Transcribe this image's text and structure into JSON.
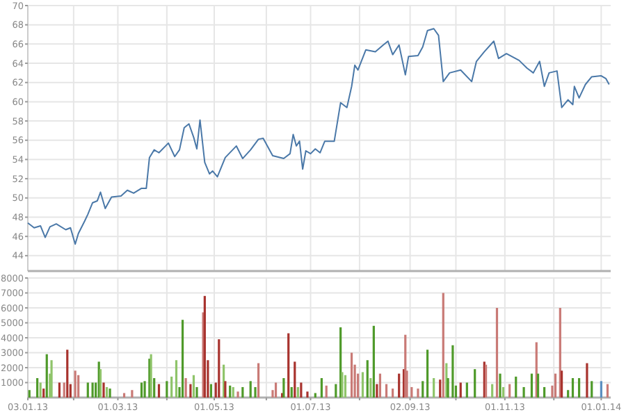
{
  "chart_data": [
    {
      "type": "line",
      "tick_labels": "y",
      "grid": true,
      "xlim": [
        "2013-01-03",
        "2014-01-07"
      ],
      "ylim": [
        42.4,
        70
      ],
      "yticks": [
        44,
        46,
        48,
        50,
        52,
        54,
        56,
        58,
        60,
        62,
        64,
        66,
        68,
        70
      ],
      "xticks": [
        {
          "value": "2013-01-03",
          "label": null
        },
        {
          "value": "2013-02-01",
          "label": null
        },
        {
          "value": "2013-03-01",
          "label": null
        },
        {
          "value": "2013-04-01",
          "label": null
        },
        {
          "value": "2013-05-01",
          "label": null
        },
        {
          "value": "2013-06-03",
          "label": null
        },
        {
          "value": "2013-07-01",
          "label": null
        },
        {
          "value": "2013-08-01",
          "label": null
        },
        {
          "value": "2013-09-02",
          "label": null
        },
        {
          "value": "2013-10-01",
          "label": null
        },
        {
          "value": "2013-11-01",
          "label": null
        },
        {
          "value": "2013-12-02",
          "label": null
        },
        {
          "value": "2014-01-01",
          "label": null
        }
      ],
      "series": [
        {
          "color": "#4a78a8",
          "x": [
            "2013-01-03",
            "2013-01-07",
            "2013-01-11",
            "2013-01-14",
            "2013-01-17",
            "2013-01-21",
            "2013-01-27",
            "2013-01-30",
            "2013-02-02",
            "2013-02-04",
            "2013-02-08",
            "2013-02-10",
            "2013-02-13",
            "2013-02-16",
            "2013-02-18",
            "2013-02-21",
            "2013-02-25",
            "2013-03-03",
            "2013-03-07",
            "2013-03-11",
            "2013-03-16",
            "2013-03-19",
            "2013-03-21",
            "2013-03-24",
            "2013-03-27",
            "2013-04-02",
            "2013-04-06",
            "2013-04-09",
            "2013-04-12",
            "2013-04-15",
            "2013-04-18",
            "2013-04-20",
            "2013-04-22",
            "2013-04-25",
            "2013-04-28",
            "2013-04-30",
            "2013-05-03",
            "2013-05-08",
            "2013-05-15",
            "2013-05-19",
            "2013-05-24",
            "2013-05-29",
            "2013-06-01",
            "2013-06-07",
            "2013-06-14",
            "2013-06-18",
            "2013-06-20",
            "2013-06-22",
            "2013-06-24",
            "2013-06-26",
            "2013-06-28",
            "2013-07-01",
            "2013-07-04",
            "2013-07-07",
            "2013-07-10",
            "2013-07-16",
            "2013-07-19",
            "2013-07-20",
            "2013-07-24",
            "2013-07-27",
            "2013-07-29",
            "2013-07-31",
            "2013-08-05",
            "2013-08-11",
            "2013-08-16",
            "2013-08-19",
            "2013-08-22",
            "2013-08-26",
            "2013-08-30",
            "2013-09-01",
            "2013-09-07",
            "2013-09-10",
            "2013-09-13",
            "2013-09-17",
            "2013-09-20",
            "2013-09-23",
            "2013-09-27",
            "2013-10-04",
            "2013-10-11",
            "2013-10-14",
            "2013-10-19",
            "2013-10-25",
            "2013-10-28",
            "2013-11-02",
            "2013-11-10",
            "2013-11-15",
            "2013-11-19",
            "2013-11-23",
            "2013-11-26",
            "2013-11-29",
            "2013-12-04",
            "2013-12-07",
            "2013-12-11",
            "2013-12-14",
            "2013-12-15",
            "2013-12-18",
            "2013-12-22",
            "2013-12-26",
            "2014-01-01",
            "2014-01-04",
            "2014-01-06"
          ],
          "values": [
            47.4,
            46.9,
            47.1,
            45.9,
            47.0,
            47.3,
            46.7,
            46.9,
            45.2,
            46.3,
            47.6,
            48.3,
            49.5,
            49.7,
            50.6,
            48.9,
            50.1,
            50.2,
            50.8,
            50.5,
            51.0,
            51.0,
            54.2,
            55.0,
            54.7,
            55.7,
            54.3,
            55.0,
            57.3,
            57.7,
            56.3,
            55.1,
            58.1,
            53.7,
            52.5,
            52.8,
            52.2,
            54.2,
            55.4,
            54.1,
            55.0,
            56.1,
            56.2,
            54.4,
            54.1,
            54.6,
            56.6,
            55.4,
            55.9,
            53.0,
            54.9,
            54.6,
            55.1,
            54.7,
            55.9,
            55.9,
            58.9,
            59.9,
            59.4,
            61.6,
            63.8,
            63.3,
            65.4,
            65.2,
            65.9,
            66.3,
            64.9,
            65.9,
            62.8,
            64.7,
            64.8,
            65.7,
            67.4,
            67.6,
            66.9,
            62.1,
            63.0,
            63.3,
            62.1,
            64.2,
            65.2,
            66.3,
            64.5,
            65.0,
            64.3,
            63.5,
            63.0,
            64.2,
            61.6,
            63.0,
            63.2,
            59.4,
            60.2,
            59.7,
            61.6,
            60.4,
            61.8,
            62.6,
            62.7,
            62.4,
            61.8
          ]
        }
      ]
    },
    {
      "type": "bar",
      "grid": true,
      "xlim": [
        "2013-01-03",
        "2014-01-07"
      ],
      "ylim": [
        0,
        8000
      ],
      "yticks": [
        1000,
        2000,
        3000,
        4000,
        5000,
        6000,
        7000,
        8000
      ],
      "xticks": [
        {
          "value": "2013-01-03",
          "label": "03.01.13"
        },
        {
          "value": "2013-02-01",
          "label": null
        },
        {
          "value": "2013-03-01",
          "label": "01.03.13"
        },
        {
          "value": "2013-04-01",
          "label": null
        },
        {
          "value": "2013-05-01",
          "label": "01.05.13"
        },
        {
          "value": "2013-06-03",
          "label": null
        },
        {
          "value": "2013-07-01",
          "label": "01.07.13"
        },
        {
          "value": "2013-08-01",
          "label": null
        },
        {
          "value": "2013-09-02",
          "label": "02.09.13"
        },
        {
          "value": "2013-10-01",
          "label": null
        },
        {
          "value": "2013-11-01",
          "label": "01.11.13"
        },
        {
          "value": "2013-12-02",
          "label": null
        },
        {
          "value": "2014-01-01",
          "label": "01.01.14"
        }
      ],
      "x": [
        "2013-01-04",
        "2013-01-09",
        "2013-01-11",
        "2013-01-13",
        "2013-01-15",
        "2013-01-17",
        "2013-01-18",
        "2013-01-23",
        "2013-01-26",
        "2013-01-28",
        "2013-01-30",
        "2013-02-02",
        "2013-02-04",
        "2013-02-10",
        "2013-02-13",
        "2013-02-15",
        "2013-02-17",
        "2013-02-18",
        "2013-02-20",
        "2013-02-22",
        "2013-02-24",
        "2013-03-05",
        "2013-03-10",
        "2013-03-16",
        "2013-03-18",
        "2013-03-21",
        "2013-03-22",
        "2013-03-24",
        "2013-03-27",
        "2013-04-01",
        "2013-04-04",
        "2013-04-07",
        "2013-04-09",
        "2013-04-11",
        "2013-04-13",
        "2013-04-16",
        "2013-04-18",
        "2013-04-20",
        "2013-04-24",
        "2013-04-25",
        "2013-04-27",
        "2013-04-29",
        "2013-05-02",
        "2013-05-04",
        "2013-05-07",
        "2013-05-08",
        "2013-05-11",
        "2013-05-13",
        "2013-05-16",
        "2013-05-19",
        "2013-05-24",
        "2013-05-27",
        "2013-05-29",
        "2013-06-07",
        "2013-06-09",
        "2013-06-13",
        "2013-06-14",
        "2013-06-17",
        "2013-06-19",
        "2013-06-21",
        "2013-06-23",
        "2013-06-25",
        "2013-06-29",
        "2013-07-04",
        "2013-07-08",
        "2013-07-11",
        "2013-07-17",
        "2013-07-20",
        "2013-07-21",
        "2013-07-23",
        "2013-07-27",
        "2013-07-29",
        "2013-07-31",
        "2013-08-03",
        "2013-08-06",
        "2013-08-08",
        "2013-08-10",
        "2013-08-12",
        "2013-08-14",
        "2013-08-18",
        "2013-08-22",
        "2013-08-26",
        "2013-08-29",
        "2013-08-30",
        "2013-08-31",
        "2013-09-03",
        "2013-09-07",
        "2013-09-10",
        "2013-09-13",
        "2013-09-17",
        "2013-09-21",
        "2013-09-23",
        "2013-09-25",
        "2013-09-26",
        "2013-09-29",
        "2013-10-01",
        "2013-10-04",
        "2013-10-08",
        "2013-10-13",
        "2013-10-19",
        "2013-10-20",
        "2013-10-24",
        "2013-10-27",
        "2013-10-29",
        "2013-10-31",
        "2013-11-04",
        "2013-11-08",
        "2013-11-13",
        "2013-11-18",
        "2013-11-21",
        "2013-11-22",
        "2013-11-26",
        "2013-12-01",
        "2013-12-03",
        "2013-12-06",
        "2013-12-07",
        "2013-12-11",
        "2013-12-14",
        "2013-12-18",
        "2013-12-23",
        "2013-12-26",
        "2014-01-01",
        "2014-01-05"
      ],
      "values": [
        500,
        1300,
        1000,
        600,
        2900,
        1600,
        2500,
        1000,
        1000,
        3200,
        900,
        1800,
        1500,
        1000,
        1000,
        1000,
        2400,
        1900,
        1000,
        700,
        600,
        300,
        500,
        1000,
        1100,
        2600,
        2900,
        1300,
        900,
        1100,
        1400,
        2500,
        700,
        5200,
        1300,
        900,
        1500,
        700,
        5700,
        6800,
        2500,
        900,
        1000,
        3900,
        2200,
        1100,
        800,
        700,
        400,
        700,
        1100,
        700,
        2300,
        500,
        1000,
        300,
        1300,
        4300,
        700,
        2400,
        700,
        1000,
        400,
        300,
        1300,
        800,
        900,
        4700,
        1700,
        1500,
        3000,
        2200,
        1600,
        1700,
        2500,
        1300,
        4800,
        900,
        1600,
        900,
        600,
        1600,
        1900,
        4200,
        1800,
        700,
        600,
        1100,
        3200,
        1300,
        1200,
        7000,
        2300,
        1300,
        3500,
        800,
        1000,
        1000,
        1900,
        2400,
        2200,
        900,
        6000,
        1600,
        700,
        900,
        1400,
        700,
        1600,
        3700,
        1600,
        700,
        800,
        1600,
        6000,
        1800,
        500,
        1300,
        1300,
        2300,
        1100,
        1100,
        900
      ],
      "colors": [
        "#4f9a2a",
        "#4f9a2a",
        "#8fc46a",
        "#a8332e",
        "#4f9a2a",
        "#8fc46a",
        "#8fc46a",
        "#a8332e",
        "#c97a76",
        "#a8332e",
        "#a8332e",
        "#c97a76",
        "#c97a76",
        "#4f9a2a",
        "#4f9a2a",
        "#4f9a2a",
        "#4f9a2a",
        "#8fc46a",
        "#a8332e",
        "#8fc46a",
        "#4f9a2a",
        "#c97a76",
        "#c97a76",
        "#4f9a2a",
        "#4f9a2a",
        "#4f9a2a",
        "#8fc46a",
        "#4f9a2a",
        "#a8332e",
        "#4f9a2a",
        "#8fc46a",
        "#8fc46a",
        "#4f9a2a",
        "#4f9a2a",
        "#c97a76",
        "#a8332e",
        "#8fc46a",
        "#4f9a2a",
        "#c97a76",
        "#a8332e",
        "#a8332e",
        "#4f9a2a",
        "#a8332e",
        "#a8332e",
        "#8fc46a",
        "#a8332e",
        "#4f9a2a",
        "#8fc46a",
        "#c97a76",
        "#4f9a2a",
        "#4f9a2a",
        "#4f9a2a",
        "#c97a76",
        "#c97a76",
        "#c97a76",
        "#a8332e",
        "#4f9a2a",
        "#a8332e",
        "#4f9a2a",
        "#a8332e",
        "#8fc46a",
        "#a8332e",
        "#a8332e",
        "#4f9a2a",
        "#4f9a2a",
        "#c97a76",
        "#4f9a2a",
        "#4f9a2a",
        "#8fc46a",
        "#8fc46a",
        "#c97a76",
        "#c97a76",
        "#c97a76",
        "#8fc46a",
        "#4f9a2a",
        "#8fc46a",
        "#4f9a2a",
        "#a8332e",
        "#c97a76",
        "#c97a76",
        "#c97a76",
        "#a8332e",
        "#a8332e",
        "#c97a76",
        "#c97a76",
        "#c97a76",
        "#c97a76",
        "#4f9a2a",
        "#4f9a2a",
        "#8fc46a",
        "#a8332e",
        "#c97a76",
        "#8fc46a",
        "#4f9a2a",
        "#4f9a2a",
        "#4f9a2a",
        "#a8332e",
        "#4f9a2a",
        "#4f9a2a",
        "#a8332e",
        "#c97a76",
        "#8fc46a",
        "#c97a76",
        "#4f9a2a",
        "#8fc46a",
        "#c97a76",
        "#4f9a2a",
        "#4f9a2a",
        "#4f9a2a",
        "#c97a76",
        "#4f9a2a",
        "#4f9a2a",
        "#c97a76",
        "#c97a76",
        "#c97a76",
        "#a8332e",
        "#4f9a2a",
        "#4f9a2a",
        "#4f9a2a",
        "#a8332e",
        "#4f9a2a",
        "#5b8fc0",
        "#c97a76"
      ]
    }
  ]
}
